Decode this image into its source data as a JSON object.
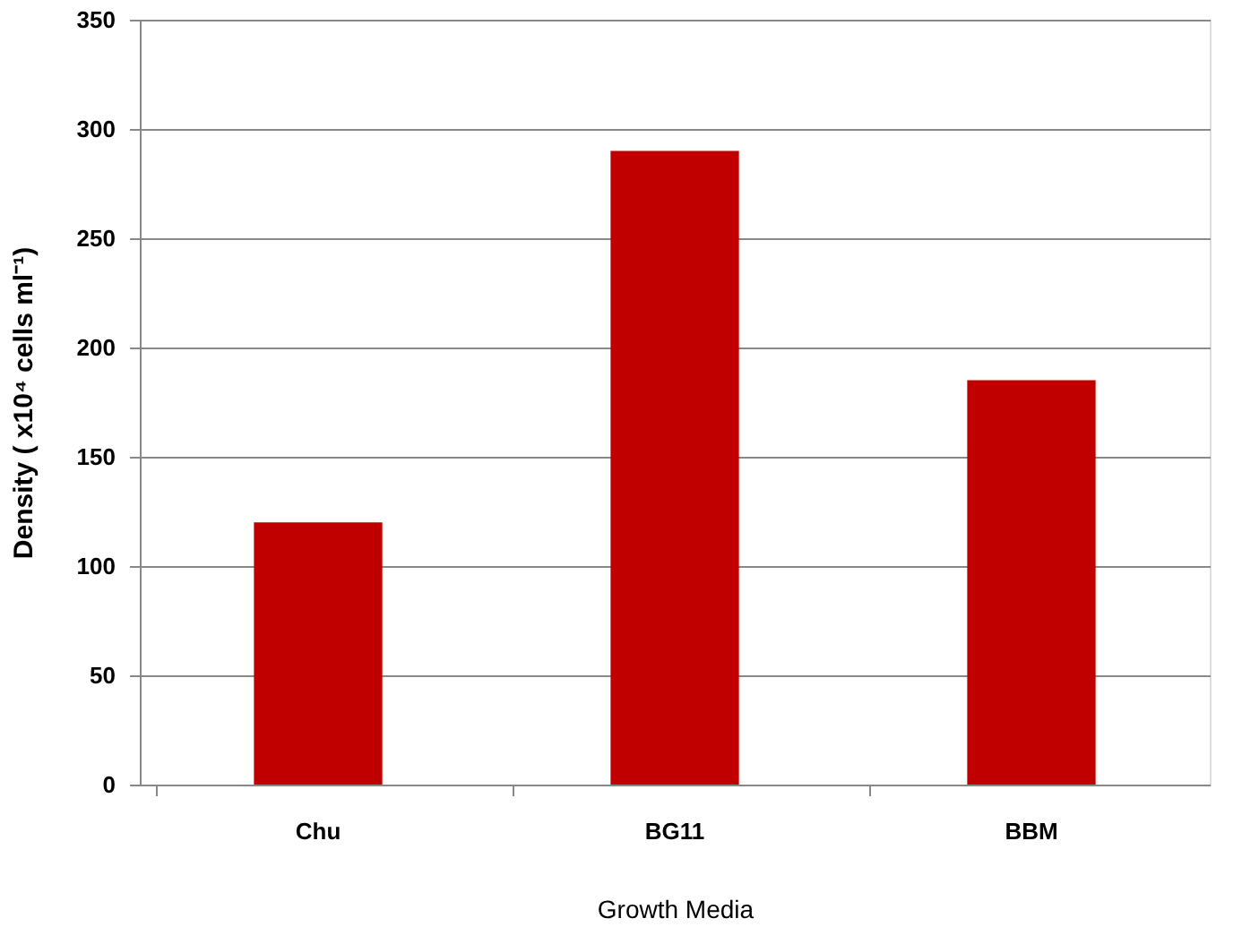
{
  "chart_data": {
    "type": "bar",
    "xlabel": "Growth Media",
    "ylabel": "Density ( x10⁴ cells ml⁻¹)",
    "categories": [
      "Chu",
      "BG11",
      "BBM"
    ],
    "values": [
      120,
      290,
      185
    ],
    "color": "#c00000",
    "ylim": [
      0,
      350
    ],
    "yticks": [
      0,
      50,
      100,
      150,
      200,
      250,
      300,
      350
    ],
    "grid": "y"
  }
}
